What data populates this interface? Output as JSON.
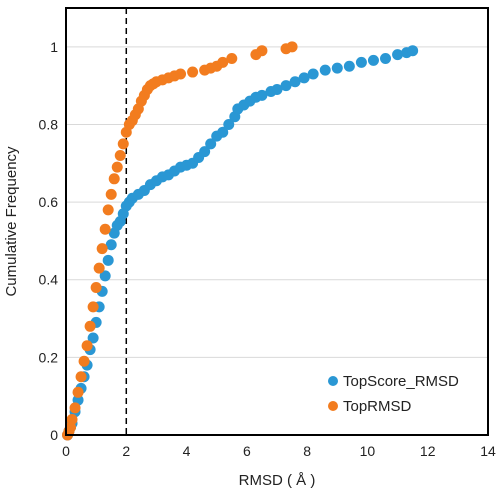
{
  "chart_data": {
    "type": "scatter",
    "title": "",
    "xlabel": "RMSD ( Å )",
    "ylabel": "Cumulative Frequency",
    "xlim": [
      0,
      14
    ],
    "ylim": [
      0,
      1.1
    ],
    "xticks": [
      0,
      2,
      4,
      6,
      8,
      10,
      12,
      14
    ],
    "yticks": [
      0,
      0.2,
      0.4,
      0.6,
      0.8,
      1
    ],
    "xtick_labels": [
      "0",
      "2",
      "4",
      "6",
      "8",
      "10",
      "12",
      "14"
    ],
    "ytick_labels": [
      "0",
      "0.2",
      "0.4",
      "0.6",
      "0.8",
      "1"
    ],
    "grid": "horizontal",
    "reference_line": {
      "x": 2,
      "style": "dashed"
    },
    "legend_position": "bottom-right",
    "series": [
      {
        "name": "TopScore_RMSD",
        "color": "#2A97D4",
        "points": [
          [
            0.05,
            0.0
          ],
          [
            0.1,
            0.01
          ],
          [
            0.15,
            0.02
          ],
          [
            0.2,
            0.03
          ],
          [
            0.3,
            0.06
          ],
          [
            0.4,
            0.09
          ],
          [
            0.5,
            0.12
          ],
          [
            0.6,
            0.15
          ],
          [
            0.7,
            0.18
          ],
          [
            0.8,
            0.22
          ],
          [
            0.9,
            0.25
          ],
          [
            1.0,
            0.29
          ],
          [
            1.1,
            0.33
          ],
          [
            1.2,
            0.37
          ],
          [
            1.3,
            0.41
          ],
          [
            1.4,
            0.45
          ],
          [
            1.5,
            0.49
          ],
          [
            1.6,
            0.52
          ],
          [
            1.7,
            0.54
          ],
          [
            1.8,
            0.55
          ],
          [
            1.9,
            0.57
          ],
          [
            2.0,
            0.59
          ],
          [
            2.1,
            0.6
          ],
          [
            2.2,
            0.61
          ],
          [
            2.4,
            0.62
          ],
          [
            2.6,
            0.63
          ],
          [
            2.8,
            0.645
          ],
          [
            3.0,
            0.655
          ],
          [
            3.2,
            0.665
          ],
          [
            3.4,
            0.67
          ],
          [
            3.6,
            0.68
          ],
          [
            3.8,
            0.69
          ],
          [
            4.0,
            0.695
          ],
          [
            4.2,
            0.7
          ],
          [
            4.4,
            0.715
          ],
          [
            4.6,
            0.73
          ],
          [
            4.8,
            0.75
          ],
          [
            5.0,
            0.77
          ],
          [
            5.2,
            0.78
          ],
          [
            5.4,
            0.8
          ],
          [
            5.6,
            0.82
          ],
          [
            5.7,
            0.84
          ],
          [
            5.9,
            0.85
          ],
          [
            6.1,
            0.86
          ],
          [
            6.3,
            0.87
          ],
          [
            6.5,
            0.875
          ],
          [
            6.8,
            0.885
          ],
          [
            7.0,
            0.89
          ],
          [
            7.3,
            0.9
          ],
          [
            7.6,
            0.91
          ],
          [
            7.9,
            0.92
          ],
          [
            8.2,
            0.93
          ],
          [
            8.6,
            0.94
          ],
          [
            9.0,
            0.945
          ],
          [
            9.4,
            0.95
          ],
          [
            9.8,
            0.96
          ],
          [
            10.2,
            0.965
          ],
          [
            10.6,
            0.97
          ],
          [
            11.0,
            0.98
          ],
          [
            11.3,
            0.985
          ],
          [
            11.5,
            0.99
          ]
        ]
      },
      {
        "name": "TopRMSD",
        "color": "#F27C1F",
        "points": [
          [
            0.05,
            0.0
          ],
          [
            0.1,
            0.01
          ],
          [
            0.15,
            0.02
          ],
          [
            0.2,
            0.04
          ],
          [
            0.3,
            0.07
          ],
          [
            0.4,
            0.11
          ],
          [
            0.5,
            0.15
          ],
          [
            0.6,
            0.19
          ],
          [
            0.7,
            0.23
          ],
          [
            0.8,
            0.28
          ],
          [
            0.9,
            0.33
          ],
          [
            1.0,
            0.38
          ],
          [
            1.1,
            0.43
          ],
          [
            1.2,
            0.48
          ],
          [
            1.3,
            0.53
          ],
          [
            1.4,
            0.58
          ],
          [
            1.5,
            0.62
          ],
          [
            1.6,
            0.66
          ],
          [
            1.7,
            0.69
          ],
          [
            1.8,
            0.72
          ],
          [
            1.9,
            0.75
          ],
          [
            2.0,
            0.78
          ],
          [
            2.1,
            0.8
          ],
          [
            2.2,
            0.81
          ],
          [
            2.3,
            0.825
          ],
          [
            2.4,
            0.84
          ],
          [
            2.5,
            0.86
          ],
          [
            2.6,
            0.875
          ],
          [
            2.7,
            0.89
          ],
          [
            2.8,
            0.9
          ],
          [
            2.9,
            0.905
          ],
          [
            3.0,
            0.91
          ],
          [
            3.2,
            0.915
          ],
          [
            3.4,
            0.92
          ],
          [
            3.6,
            0.925
          ],
          [
            3.8,
            0.93
          ],
          [
            4.2,
            0.935
          ],
          [
            4.6,
            0.94
          ],
          [
            4.8,
            0.945
          ],
          [
            5.0,
            0.95
          ],
          [
            5.2,
            0.96
          ],
          [
            5.5,
            0.97
          ],
          [
            6.3,
            0.98
          ],
          [
            6.5,
            0.99
          ],
          [
            7.3,
            0.995
          ],
          [
            7.5,
            1.0
          ]
        ]
      }
    ]
  }
}
